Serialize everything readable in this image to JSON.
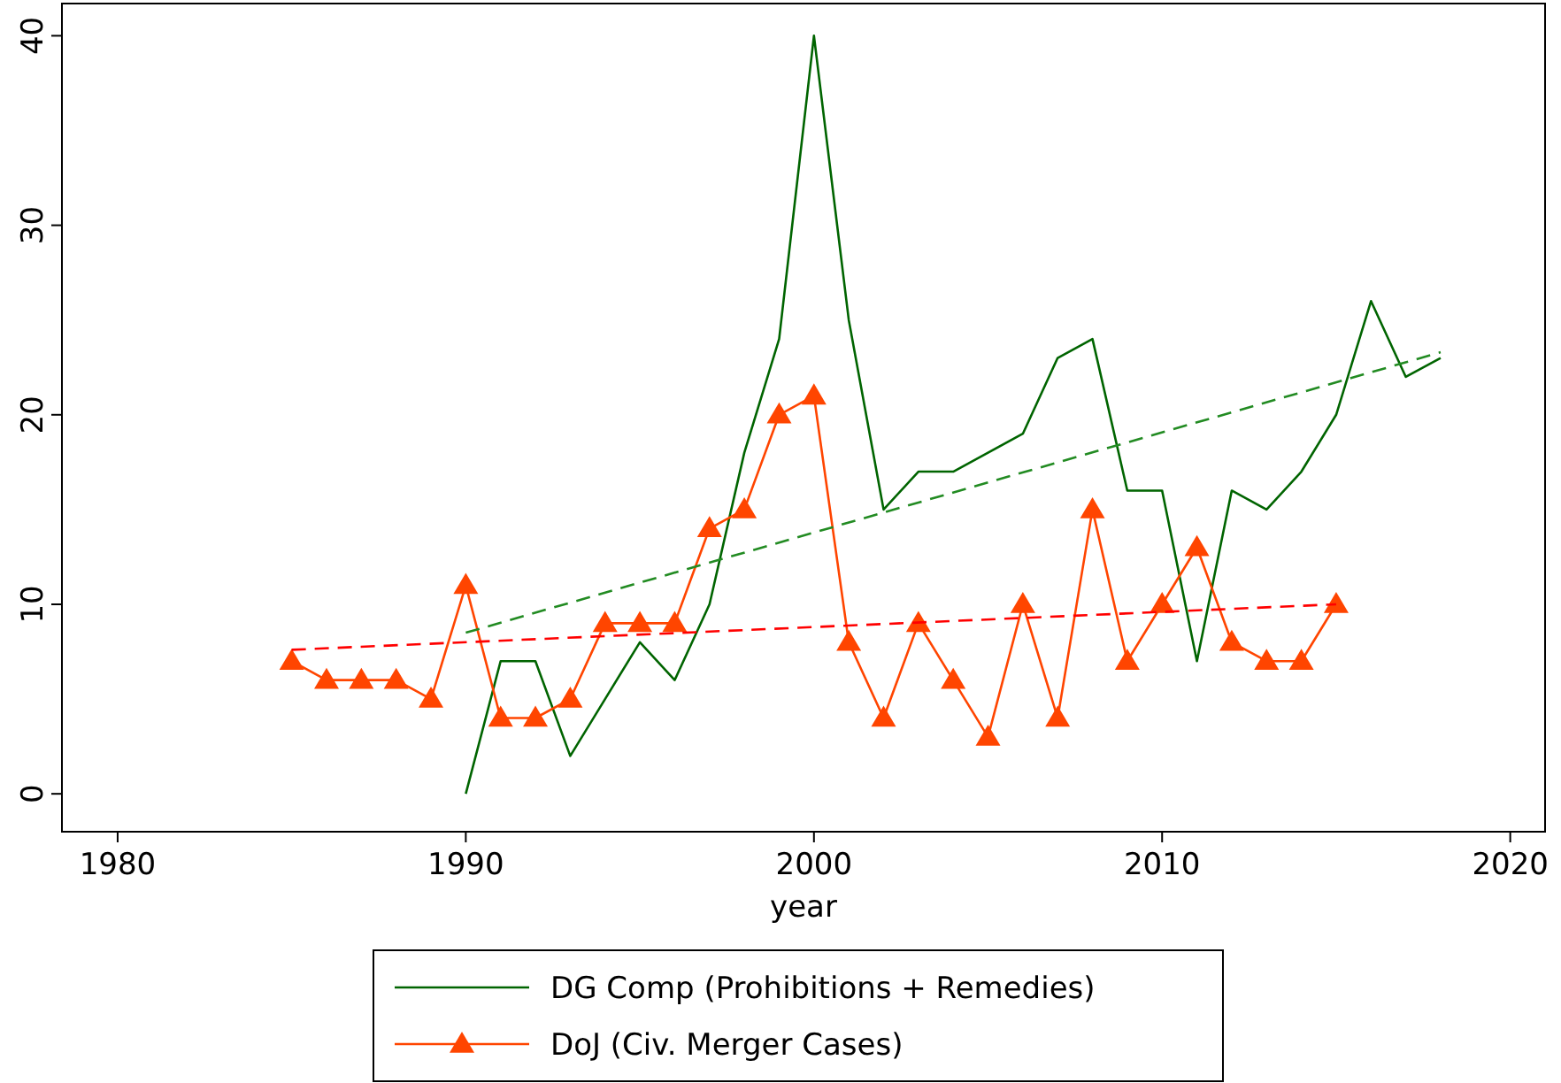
{
  "chart_data": {
    "type": "line",
    "xlabel": "year",
    "xlim": [
      1978.4,
      2021
    ],
    "ylim": [
      -2,
      41.7
    ],
    "xticks": [
      1980,
      1990,
      2000,
      2010,
      2020
    ],
    "yticks": [
      0,
      10,
      20,
      30,
      40
    ],
    "grid": false,
    "legend": "bottom",
    "series": [
      {
        "name": "DG Comp (Prohibitions + Remedies)",
        "color": "#006400",
        "marker": "none",
        "line_style": "solid",
        "x": [
          1990,
          1991,
          1992,
          1993,
          1994,
          1995,
          1996,
          1997,
          1998,
          1999,
          2000,
          2001,
          2002,
          2003,
          2004,
          2005,
          2006,
          2007,
          2008,
          2009,
          2010,
          2011,
          2012,
          2013,
          2014,
          2015,
          2016,
          2017,
          2018
        ],
        "values": [
          0,
          7,
          7,
          2,
          5,
          8,
          6,
          10,
          18,
          24,
          40,
          25,
          15,
          17,
          17,
          18,
          19,
          23,
          24,
          16,
          16,
          7,
          16,
          15,
          17,
          20,
          26,
          22,
          23
        ]
      },
      {
        "name": "DoJ (Civ. Merger Cases)",
        "color": "#ff4500",
        "marker": "triangle",
        "line_style": "solid",
        "x": [
          1985,
          1986,
          1987,
          1988,
          1989,
          1990,
          1991,
          1992,
          1993,
          1994,
          1995,
          1996,
          1997,
          1998,
          1999,
          2000,
          2001,
          2002,
          2003,
          2004,
          2005,
          2006,
          2007,
          2008,
          2009,
          2010,
          2011,
          2012,
          2013,
          2014,
          2015
        ],
        "values": [
          7,
          6,
          6,
          6,
          5,
          11,
          4,
          4,
          5,
          9,
          9,
          9,
          14,
          15,
          20,
          21,
          8,
          4,
          9,
          6,
          3,
          10,
          4,
          15,
          7,
          10,
          13,
          8,
          7,
          7,
          10
        ]
      },
      {
        "color": "#228b22",
        "marker": "none",
        "line_style": "dashed",
        "x": [
          1990,
          2018
        ],
        "values": [
          8.5,
          23.3
        ]
      },
      {
        "color": "#ff0000",
        "marker": "none",
        "line_style": "dashed",
        "x": [
          1985,
          2015
        ],
        "values": [
          7.6,
          10.0
        ]
      }
    ]
  }
}
